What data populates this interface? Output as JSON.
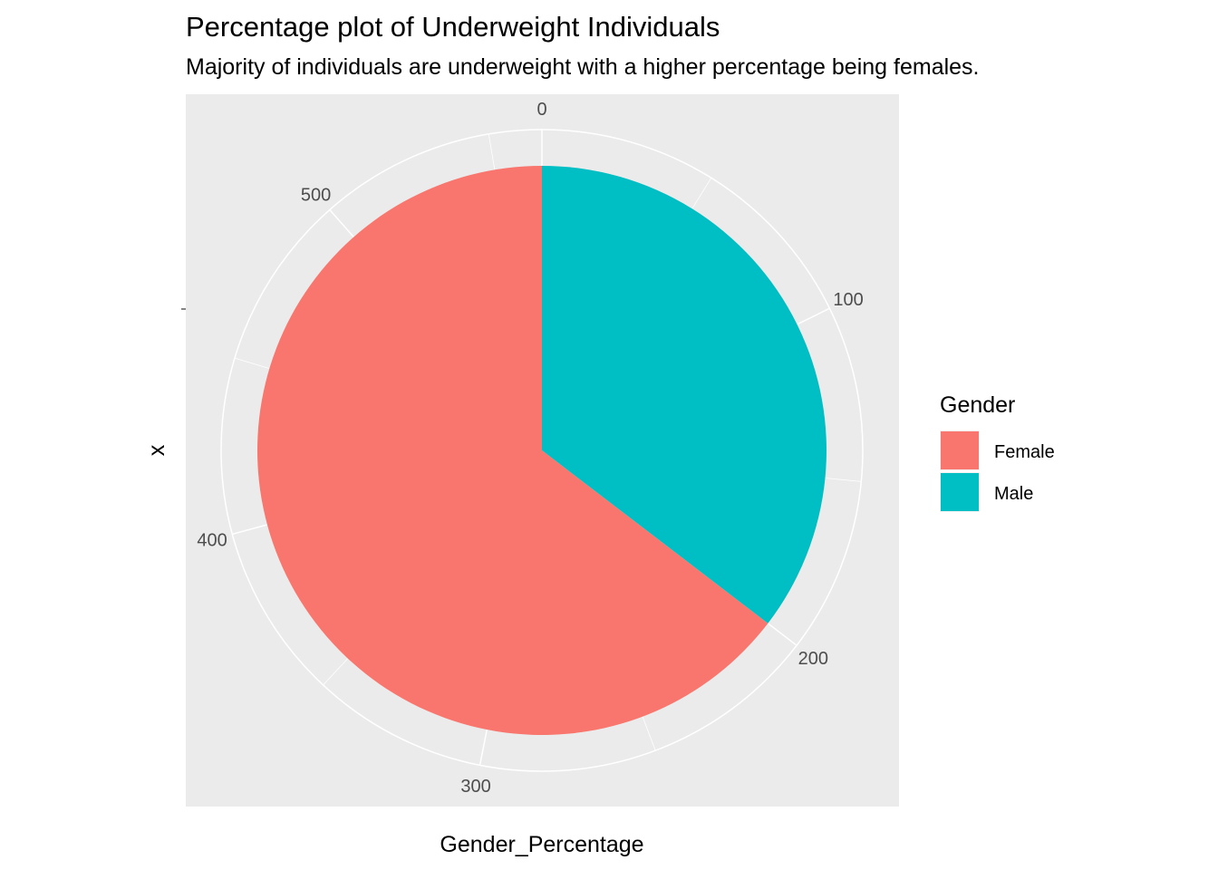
{
  "chart_data": {
    "type": "pie",
    "title": "Percentage plot of Underweight Individuals",
    "subtitle": "Majority of individuals are underweight with a higher percentage being females.",
    "xlabel": "Gender_Percentage",
    "ylabel": "x",
    "theta_range": [
      0,
      565
    ],
    "theta_ticks": [
      "0",
      "100",
      "200",
      "300",
      "400",
      "500"
    ],
    "slices": [
      {
        "label": "Male",
        "value": 200,
        "color": "#00BFC4"
      },
      {
        "label": "Female",
        "value": 365,
        "color": "#F8766D"
      }
    ],
    "legend": {
      "title": "Gender",
      "position": "right",
      "items": [
        {
          "label": "Female",
          "color": "#F8766D"
        },
        {
          "label": "Male",
          "color": "#00BFC4"
        }
      ]
    },
    "panel_background": "#EBEBEB",
    "grid_color": "#FFFFFF",
    "grid": true
  }
}
